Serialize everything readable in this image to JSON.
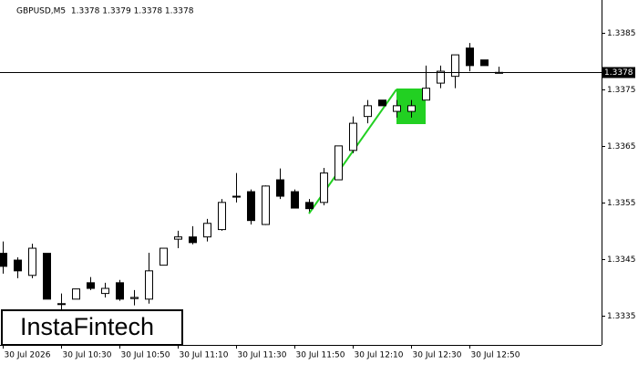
{
  "chart_data": {
    "type": "candlestick",
    "title": "GBPUSD,M5  1.3378 1.3379 1.3378 1.3378",
    "watermark": "InstaFintech",
    "categories": [
      "30 Jul 2026",
      null,
      null,
      null,
      "30 Jul 10:30",
      null,
      null,
      null,
      "30 Jul 10:50",
      null,
      null,
      null,
      "30 Jul 11:10",
      null,
      null,
      null,
      "30 Jul 11:30",
      null,
      null,
      null,
      "30 Jul 11:50",
      null,
      null,
      null,
      "30 Jul 12:10",
      null,
      null,
      null,
      "30 Jul 12:30",
      null,
      null,
      null,
      "30 Jul 12:50",
      null,
      null
    ],
    "open": [
      1.3346,
      1.33448,
      1.33421,
      1.3346,
      1.33371,
      1.33379,
      1.33408,
      1.33389,
      1.33408,
      1.3338,
      1.33379,
      1.33439,
      1.33485,
      1.33489,
      1.33489,
      1.33502,
      1.33561,
      1.33569,
      1.33511,
      1.3359,
      1.33569,
      1.3355,
      1.3355,
      1.3359,
      1.33642,
      1.33702,
      1.33731,
      1.33711,
      1.33711,
      1.33731,
      1.33761,
      1.33773,
      1.33823,
      1.33802,
      1.3378
    ],
    "high": [
      1.33481,
      1.33453,
      1.33477,
      1.3346,
      1.33389,
      1.33397,
      1.33418,
      1.33408,
      1.33413,
      1.33395,
      1.33461,
      1.33469,
      1.335,
      1.33508,
      1.33521,
      1.33556,
      1.33602,
      1.33573,
      1.3358,
      1.3361,
      1.33573,
      1.33556,
      1.33611,
      1.3365,
      1.33702,
      1.33731,
      1.33731,
      1.33731,
      1.33731,
      1.33792,
      1.33792,
      1.33811,
      1.33832,
      1.33802,
      1.3379
    ],
    "low": [
      1.33424,
      1.33416,
      1.33416,
      1.33379,
      1.3336,
      1.33379,
      1.33395,
      1.33382,
      1.33376,
      1.33368,
      1.33371,
      1.33439,
      1.33469,
      1.33476,
      1.33481,
      1.335,
      1.3355,
      1.33511,
      1.3351,
      1.33556,
      1.3354,
      1.33534,
      1.33545,
      1.3359,
      1.33637,
      1.3369,
      1.33721,
      1.337,
      1.337,
      1.33731,
      1.33752,
      1.33752,
      1.33782,
      1.33792,
      1.3378
    ],
    "close": [
      1.33437,
      1.33429,
      1.33469,
      1.33379,
      1.3337,
      1.33397,
      1.33398,
      1.33398,
      1.33379,
      1.33382,
      1.33429,
      1.33469,
      1.33489,
      1.33479,
      1.33513,
      1.3355,
      1.33561,
      1.33518,
      1.33579,
      1.33561,
      1.3354,
      1.33539,
      1.33602,
      1.3365,
      1.3369,
      1.33721,
      1.33721,
      1.33721,
      1.33721,
      1.33752,
      1.33782,
      1.33811,
      1.33792,
      1.33792,
      1.3378
    ],
    "up_color": "#ffffff",
    "down_color": "#000000",
    "last_price": 1.3378,
    "ylim": [
      1.33298,
      1.33908
    ],
    "yticks": [
      1.3335,
      1.3345,
      1.3355,
      1.3365,
      1.3375,
      1.3385
    ]
  }
}
